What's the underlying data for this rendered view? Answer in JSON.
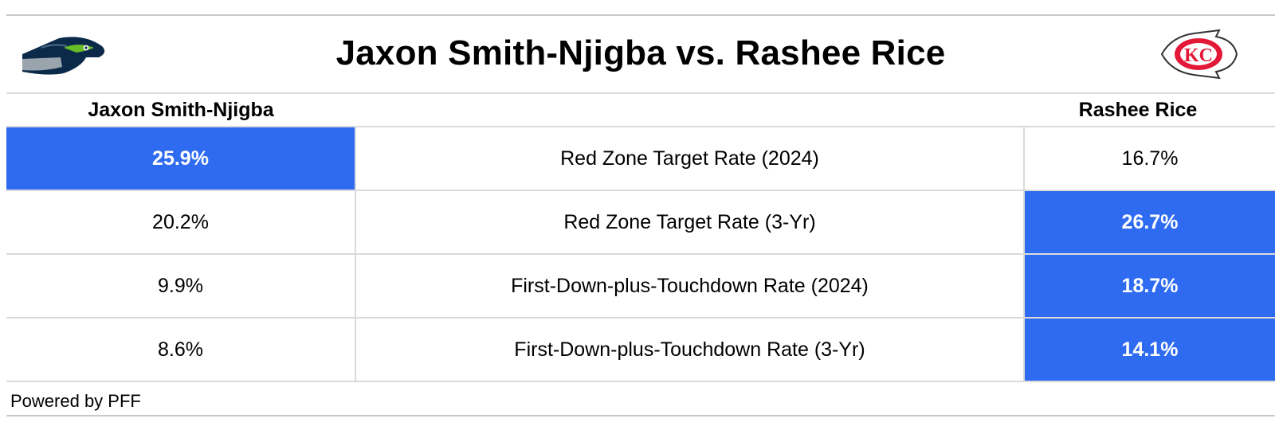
{
  "title": "Jaxon Smith-Njigba vs. Rashee Rice",
  "logos": {
    "left": "seattle-seahawks-logo",
    "right": "kansas-city-chiefs-logo"
  },
  "columns": {
    "left": "Jaxon Smith-Njigba",
    "right": "Rashee Rice"
  },
  "colors": {
    "highlight": "#2f6bf0",
    "highlight_text": "#ffffff",
    "grid": "#dadada"
  },
  "chart_data": {
    "type": "table",
    "title": "Jaxon Smith-Njigba vs. Rashee Rice",
    "columns": [
      "Jaxon Smith-Njigba",
      "",
      "Rashee Rice"
    ],
    "rows": [
      {
        "metric": "Red Zone Target Rate (2024)",
        "left": "25.9%",
        "right": "16.7%",
        "leader": "left"
      },
      {
        "metric": "Red Zone Target Rate (3-Yr)",
        "left": "20.2%",
        "right": "26.7%",
        "leader": "right"
      },
      {
        "metric": "First-Down-plus-Touchdown Rate (2024)",
        "left": "9.9%",
        "right": "18.7%",
        "leader": "right"
      },
      {
        "metric": "First-Down-plus-Touchdown Rate (3-Yr)",
        "left": "8.6%",
        "right": "14.1%",
        "leader": "right"
      }
    ]
  },
  "footer": "Powered by PFF"
}
